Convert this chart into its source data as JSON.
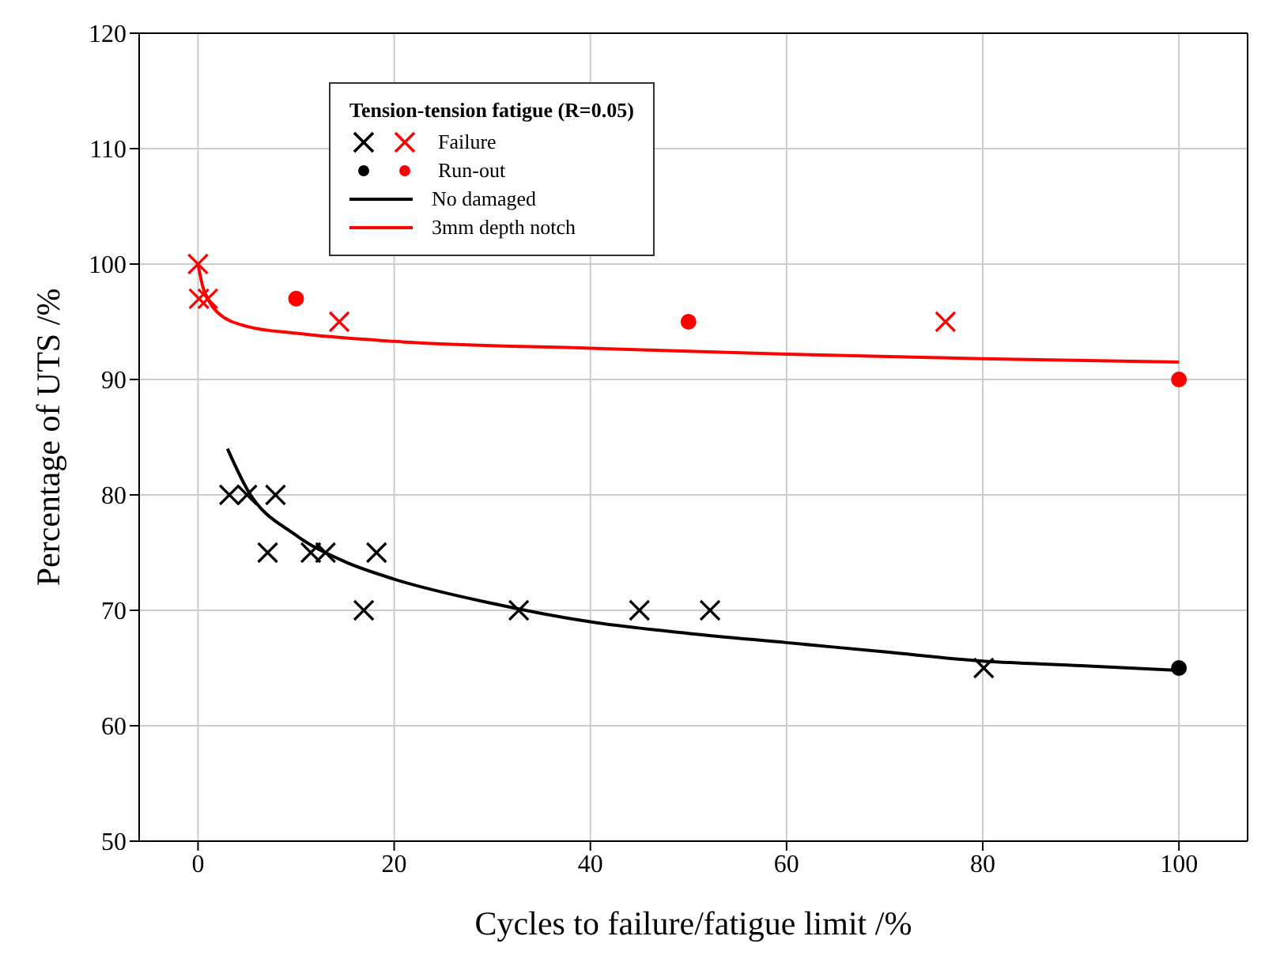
{
  "chart_data": {
    "type": "scatter",
    "xlabel": "Cycles to failure/fatigue limit /%",
    "ylabel": "Percentage of UTS /%",
    "legend_title": "Tension-tension fatigue (R=0.05)",
    "xlim": [
      -6,
      107
    ],
    "xticks": [
      0,
      20,
      40,
      60,
      80,
      100
    ],
    "ylim": [
      50,
      120
    ],
    "yticks": [
      50,
      60,
      70,
      80,
      90,
      100,
      110,
      120
    ],
    "grid": true,
    "legend": "top left",
    "series": [
      {
        "color": "#000000",
        "marker": "cross",
        "x": [
          3.2,
          5.0,
          7.9,
          7.1,
          11.5,
          13.0,
          18.2,
          16.9,
          32.7,
          45.0,
          52.2,
          80.1
        ],
        "values": [
          80,
          80,
          80,
          75,
          75,
          75,
          75,
          70,
          70,
          70,
          70,
          65
        ]
      },
      {
        "name": "Failure",
        "color": "#ff0000",
        "marker": "cross",
        "x": [
          0,
          0.1,
          1.0,
          14.4,
          76.2
        ],
        "values": [
          100,
          97,
          97,
          95,
          95
        ]
      },
      {
        "color": "#000000",
        "marker": "circle",
        "x": [
          100
        ],
        "values": [
          65
        ]
      },
      {
        "name": "Run-out",
        "color": "#ff0000",
        "marker": "circle",
        "x": [
          10,
          50,
          100
        ],
        "values": [
          97,
          95,
          90
        ]
      },
      {
        "name": "No damaged",
        "type": "line",
        "color": "#000000",
        "x": [
          3,
          5,
          10,
          15,
          20,
          30,
          40,
          50,
          60,
          70,
          80,
          90,
          100
        ],
        "values": [
          84,
          80.5,
          76.5,
          74.2,
          72.7,
          70.6,
          69.0,
          68.0,
          67.2,
          66.4,
          65.6,
          65.2,
          64.8
        ]
      },
      {
        "name": "3mm depth notch",
        "type": "line",
        "color": "#ff0000",
        "x": [
          0,
          0.5,
          1,
          2,
          5,
          10,
          20,
          40,
          60,
          80,
          100
        ],
        "values": [
          100,
          98,
          97,
          95.8,
          94.6,
          94,
          93.3,
          92.7,
          92.2,
          91.8,
          91.5
        ]
      }
    ]
  }
}
